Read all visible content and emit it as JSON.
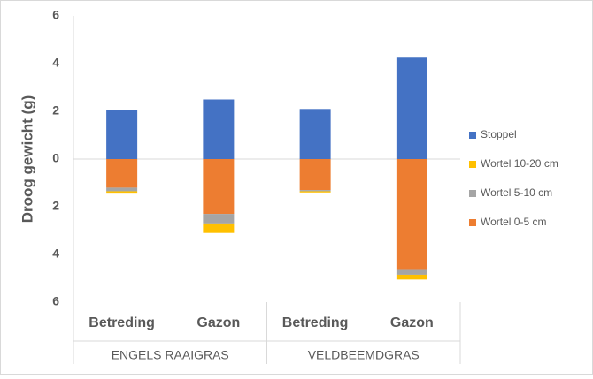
{
  "chart_data": {
    "type": "stacked-bar",
    "y_label": "Droog gewicht (g)",
    "categories": [
      "Betreding",
      "Gazon",
      "Betreding",
      "Gazon"
    ],
    "groups": [
      "ENGELS RAAIGRAS",
      "VELDBEEMDGRAS"
    ],
    "series": [
      {
        "name": "Stoppel",
        "color": "#4472c4",
        "values": [
          2.05,
          2.5,
          2.1,
          4.25
        ]
      },
      {
        "name": "Wortel 10-20 cm",
        "color": "#ffc000",
        "values": [
          -0.1,
          -0.4,
          -0.05,
          -0.2
        ]
      },
      {
        "name": "Wortel 5-10 cm",
        "color": "#a5a5a5",
        "values": [
          -0.15,
          -0.4,
          -0.05,
          -0.2
        ]
      },
      {
        "name": "Wortel 0-5 cm",
        "color": "#ed7d31",
        "values": [
          -1.2,
          -2.3,
          -1.3,
          -4.65
        ]
      }
    ],
    "ylim": [
      -6,
      6
    ],
    "yticks": [
      {
        "value": -6,
        "label": "6"
      },
      {
        "value": -4,
        "label": "4"
      },
      {
        "value": -2,
        "label": "2"
      },
      0,
      2,
      4,
      6
    ],
    "grid": false,
    "legend": "right"
  }
}
